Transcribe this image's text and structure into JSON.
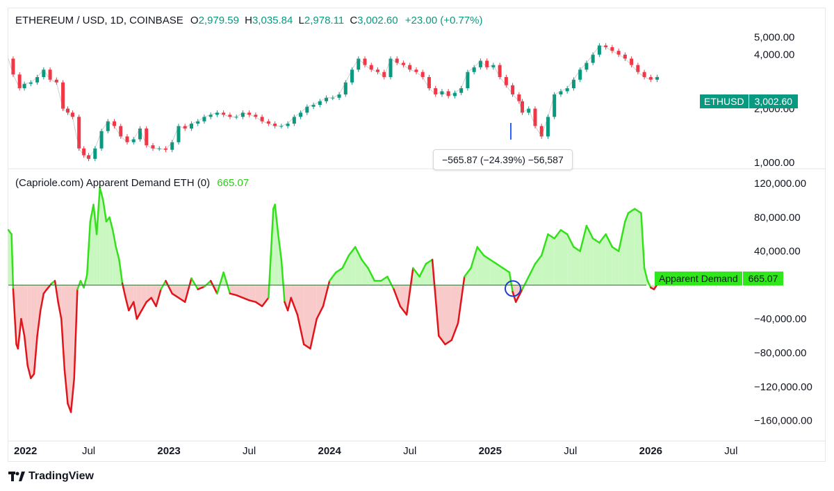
{
  "header": {
    "symbol": "ETHEREUM / USD, 1D, COINBASE",
    "o_label": "O",
    "o_value": "2,979.59",
    "h_label": "H",
    "h_value": "3,035.84",
    "l_label": "L",
    "l_value": "2,978.11",
    "c_label": "C",
    "c_value": "3,002.60",
    "change": "+23.00 (+0.77%)"
  },
  "price_badge": {
    "ticker": "ETHUSD",
    "value": "3,002.60"
  },
  "measure_tooltip": "−565.87 (−24.39%) −56,587",
  "indicator": {
    "title": "(Capriole.com) Apparent Demand ETH (0)",
    "value": "665.07"
  },
  "indicator_badge": {
    "name": "Apparent Demand",
    "value": "665.07"
  },
  "footer": {
    "brand": "TradingView"
  },
  "colors": {
    "up": "#089981",
    "down": "#f23645",
    "demand_pos": "#33e11a",
    "demand_neg": "#e0141a",
    "fill_pos": "#c9f7c0",
    "fill_neg": "#f9caca"
  },
  "chart_data": [
    {
      "type": "line",
      "title": "ETHEREUM / USD, 1D, COINBASE",
      "y_scale": "log",
      "ylim": [
        950,
        5400
      ],
      "y_ticks": [
        "5,000.00",
        "4,000.00",
        "2,000.00",
        "1,000.00"
      ],
      "y_tick_values": [
        5000,
        4000,
        2000,
        1000
      ],
      "xlim": [
        2022.0,
        2026.6
      ],
      "series": [
        {
          "x": [
            2022.0,
            2022.03,
            2022.07,
            2022.1,
            2022.14,
            2022.18,
            2022.22,
            2022.26,
            2022.3,
            2022.34,
            2022.37,
            2022.4,
            2022.44,
            2022.47,
            2022.5,
            2022.54,
            2022.58,
            2022.62,
            2022.66,
            2022.7,
            2022.74,
            2022.78,
            2022.82,
            2022.86,
            2022.9,
            2022.94,
            2022.98,
            2023.02,
            2023.06,
            2023.1,
            2023.14,
            2023.18,
            2023.22,
            2023.26,
            2023.3,
            2023.34,
            2023.38,
            2023.42,
            2023.46,
            2023.5,
            2023.54,
            2023.58,
            2023.62,
            2023.66,
            2023.7,
            2023.74,
            2023.78,
            2023.82,
            2023.86,
            2023.9,
            2023.94,
            2023.98,
            2024.02,
            2024.06,
            2024.1,
            2024.14,
            2024.18,
            2024.22,
            2024.26,
            2024.3,
            2024.34,
            2024.38,
            2024.42,
            2024.46,
            2024.5,
            2024.54,
            2024.58,
            2024.62,
            2024.66,
            2024.7,
            2024.74,
            2024.78,
            2024.82,
            2024.86,
            2024.9,
            2024.94,
            2024.98,
            2025.02,
            2025.06,
            2025.1,
            2025.14,
            2025.18,
            2025.2,
            2025.24,
            2025.28,
            2025.32,
            2025.36,
            2025.4,
            2025.44,
            2025.48,
            2025.52,
            2025.56,
            2025.6,
            2025.64,
            2025.68,
            2025.72,
            2025.76,
            2025.8,
            2025.84,
            2025.88,
            2025.92,
            2025.96,
            2026.0,
            2026.04
          ],
          "y": [
            3800,
            3100,
            2600,
            2750,
            2800,
            3000,
            3300,
            2900,
            2800,
            2000,
            1900,
            1800,
            1200,
            1100,
            1050,
            1200,
            1500,
            1700,
            1600,
            1400,
            1300,
            1350,
            1550,
            1250,
            1200,
            1200,
            1180,
            1300,
            1600,
            1550,
            1650,
            1700,
            1800,
            1850,
            1900,
            1850,
            1800,
            1800,
            1900,
            1850,
            1800,
            1700,
            1650,
            1600,
            1600,
            1650,
            1800,
            1900,
            2050,
            2100,
            2200,
            2300,
            2300,
            2400,
            2800,
            3300,
            3800,
            3500,
            3300,
            3200,
            3000,
            3800,
            3600,
            3500,
            3300,
            3200,
            3000,
            2600,
            2400,
            2500,
            2350,
            2450,
            2600,
            3200,
            3400,
            3700,
            3400,
            3500,
            3000,
            2700,
            2400,
            2200,
            1900,
            2000,
            1600,
            1400,
            1800,
            2400,
            2500,
            2600,
            2900,
            3300,
            3600,
            4000,
            4500,
            4400,
            4200,
            4000,
            3800,
            3500,
            3200,
            3000,
            2900,
            3002.6
          ],
          "color": "candles"
        }
      ]
    },
    {
      "type": "area",
      "title": "(Capriole.com) Apparent Demand ETH (0)",
      "ylim": [
        -180000,
        125000
      ],
      "y_ticks": [
        "120,000.00",
        "80,000.00",
        "40,000.00",
        "−40,000.00",
        "−80,000.00",
        "−120,000.00",
        "−160,000.00"
      ],
      "y_tick_values": [
        120000,
        80000,
        40000,
        -40000,
        -80000,
        -120000,
        -160000
      ],
      "xlim": [
        2022.0,
        2026.6
      ],
      "x_ticks": [
        "2022",
        "Jul",
        "2023",
        "Jul",
        "2024",
        "Jul",
        "2025",
        "Jul",
        "2026",
        "Jul"
      ],
      "x_tick_values": [
        2022.0,
        2022.5,
        2023.0,
        2023.5,
        2024.0,
        2024.5,
        2025.0,
        2025.5,
        2026.0,
        2026.5
      ],
      "series": [
        {
          "name": "Apparent Demand",
          "x": [
            2022.0,
            2022.02,
            2022.03,
            2022.05,
            2022.06,
            2022.08,
            2022.1,
            2022.12,
            2022.14,
            2022.16,
            2022.18,
            2022.2,
            2022.22,
            2022.24,
            2022.27,
            2022.29,
            2022.31,
            2022.33,
            2022.35,
            2022.37,
            2022.39,
            2022.41,
            2022.43,
            2022.45,
            2022.47,
            2022.49,
            2022.51,
            2022.53,
            2022.55,
            2022.57,
            2022.59,
            2022.61,
            2022.63,
            2022.65,
            2022.67,
            2022.69,
            2022.71,
            2022.73,
            2022.75,
            2022.78,
            2022.8,
            2022.83,
            2022.86,
            2022.89,
            2022.92,
            2022.95,
            2022.98,
            2023.02,
            2023.06,
            2023.1,
            2023.14,
            2023.18,
            2023.22,
            2023.26,
            2023.3,
            2023.34,
            2023.38,
            2023.42,
            2023.46,
            2023.5,
            2023.54,
            2023.58,
            2023.62,
            2023.65,
            2023.66,
            2023.68,
            2023.7,
            2023.72,
            2023.74,
            2023.76,
            2023.8,
            2023.84,
            2023.88,
            2023.92,
            2023.96,
            2024.0,
            2024.04,
            2024.08,
            2024.12,
            2024.16,
            2024.2,
            2024.24,
            2024.28,
            2024.32,
            2024.36,
            2024.4,
            2024.44,
            2024.48,
            2024.52,
            2024.56,
            2024.6,
            2024.64,
            2024.68,
            2024.72,
            2024.76,
            2024.8,
            2024.84,
            2024.86,
            2024.88,
            2024.92,
            2024.96,
            2025.0,
            2025.04,
            2025.08,
            2025.12,
            2025.14,
            2025.16,
            2025.2,
            2025.24,
            2025.28,
            2025.32,
            2025.36,
            2025.4,
            2025.44,
            2025.48,
            2025.52,
            2025.56,
            2025.6,
            2025.64,
            2025.68,
            2025.72,
            2025.76,
            2025.8,
            2025.84,
            2025.86,
            2025.9,
            2025.94,
            2025.96,
            2025.98,
            2026.0,
            2026.02,
            2026.04
          ],
          "y": [
            65000,
            60000,
            -5000,
            -70000,
            -75000,
            -40000,
            -60000,
            -95000,
            -110000,
            -105000,
            -60000,
            -30000,
            -10000,
            -5000,
            2000,
            5000,
            -20000,
            -40000,
            -100000,
            -140000,
            -150000,
            -110000,
            -5000,
            5000,
            -3000,
            12000,
            75000,
            95000,
            60000,
            115000,
            100000,
            75000,
            80000,
            65000,
            45000,
            30000,
            2000,
            -15000,
            -30000,
            -20000,
            -40000,
            -30000,
            -20000,
            -15000,
            -25000,
            -5000,
            5000,
            -10000,
            -15000,
            -20000,
            8000,
            -5000,
            -2000,
            5000,
            -10000,
            15000,
            -10000,
            -12000,
            -15000,
            -18000,
            -20000,
            -25000,
            -15000,
            90000,
            95000,
            60000,
            30000,
            -20000,
            -30000,
            -15000,
            -35000,
            -70000,
            -75000,
            -40000,
            -25000,
            5000,
            15000,
            20000,
            35000,
            45000,
            30000,
            20000,
            5000,
            5000,
            10000,
            -5000,
            -25000,
            -35000,
            20000,
            10000,
            25000,
            30000,
            -60000,
            -70000,
            -65000,
            -45000,
            10000,
            15000,
            20000,
            45000,
            35000,
            30000,
            25000,
            20000,
            15000,
            -8000,
            -20000,
            -5000,
            10000,
            25000,
            35000,
            60000,
            55000,
            65000,
            60000,
            45000,
            40000,
            70000,
            55000,
            50000,
            60000,
            45000,
            40000,
            75000,
            85000,
            90000,
            85000,
            20000,
            5000,
            -3000,
            -5000,
            665.07
          ],
          "color": "#33e11a"
        }
      ]
    }
  ]
}
